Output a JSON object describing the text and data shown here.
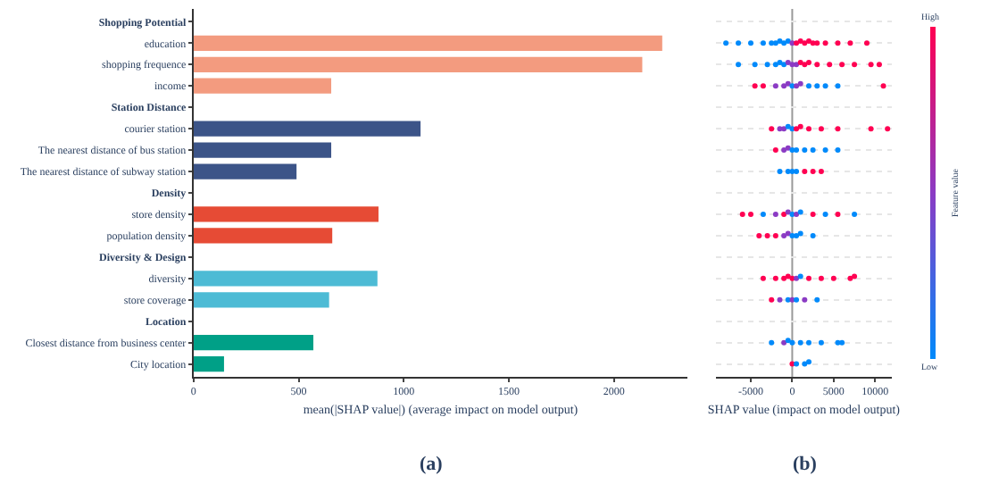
{
  "chart_data": [
    {
      "type": "bar",
      "orientation": "horizontal",
      "categories": [
        "Shopping Potential",
        "education",
        "shopping frequence",
        "income",
        "Station Distance",
        "courier station",
        "The nearest distance of bus station",
        "The nearest distance of subway station",
        "Density",
        "store density",
        "population density",
        "Diversity & Design",
        "diversity",
        "store coverage",
        "Location",
        "Closest distance from business center",
        "City location"
      ],
      "values": [
        null,
        2230,
        2135,
        655,
        null,
        1080,
        655,
        490,
        null,
        880,
        660,
        null,
        875,
        645,
        null,
        570,
        145
      ],
      "colors": [
        null,
        "#f39b7f",
        "#f39b7f",
        "#f39b7f",
        null,
        "#3c5488",
        "#3c5488",
        "#3c5488",
        null,
        "#e64b35",
        "#e64b35",
        null,
        "#4dbbd5",
        "#4dbbd5",
        null,
        "#00a087",
        "#00a087"
      ],
      "xlim": [
        0,
        2350
      ],
      "xticks": [
        0,
        500,
        1000,
        1500,
        2000
      ],
      "xlabel": "mean(|SHAP value|) (average impact on model output)",
      "annotations": [
        "(a)"
      ]
    },
    {
      "type": "scatter",
      "orientation": "horizontal",
      "marker": "circle",
      "grid": "y",
      "tick_labels": "x",
      "categories": [
        "Shopping Potential",
        "education",
        "shopping frequence",
        "income",
        "Station Distance",
        "courier station",
        "The nearest distance of bus station",
        "The nearest distance of subway station",
        "Density",
        "store density",
        "population density",
        "Diversity & Design",
        "diversity",
        "store coverage",
        "Location",
        "Closest distance from business center",
        "City location"
      ],
      "series": [
        {
          "x": [
            "education",
            "education",
            "education",
            "education",
            "education",
            "education",
            "education",
            "education",
            "education",
            "education",
            "education",
            "education",
            "education",
            "education",
            "education",
            "education",
            "education",
            "education",
            "education",
            "education"
          ],
          "values": [
            -8000,
            -6500,
            -5000,
            -3500,
            -2500,
            -2000,
            -1500,
            -1000,
            -500,
            0,
            500,
            1000,
            1500,
            2000,
            2500,
            3000,
            4000,
            5500,
            7000,
            9000
          ],
          "colors": [
            "#008afb",
            "#008afb",
            "#008afb",
            "#008afb",
            "#008afb",
            "#008afb",
            "#008afb",
            "#008afb",
            "#008afb",
            "#8b3bc4",
            "#ff0052",
            "#ff0052",
            "#ff0052",
            "#ff0052",
            "#ff0052",
            "#ff0052",
            "#ff0052",
            "#ff0052",
            "#ff0052",
            "#ff0052"
          ]
        },
        {
          "x": [
            "shopping frequence",
            "shopping frequence",
            "shopping frequence",
            "shopping frequence",
            "shopping frequence",
            "shopping frequence",
            "shopping frequence",
            "shopping frequence",
            "shopping frequence",
            "shopping frequence",
            "shopping frequence",
            "shopping frequence",
            "shopping frequence",
            "shopping frequence",
            "shopping frequence",
            "shopping frequence",
            "shopping frequence",
            "shopping frequence"
          ],
          "values": [
            -6500,
            -4500,
            -3000,
            -2000,
            -1500,
            -1000,
            -500,
            0,
            500,
            1000,
            1500,
            2000,
            3000,
            4500,
            6000,
            7500,
            9500,
            10500
          ],
          "colors": [
            "#008afb",
            "#008afb",
            "#008afb",
            "#008afb",
            "#008afb",
            "#008afb",
            "#8b3bc4",
            "#8b3bc4",
            "#8b3bc4",
            "#ff0052",
            "#ff0052",
            "#ff0052",
            "#ff0052",
            "#ff0052",
            "#ff0052",
            "#ff0052",
            "#ff0052",
            "#ff0052"
          ]
        },
        {
          "x": [
            "income",
            "income",
            "income",
            "income",
            "income",
            "income",
            "income",
            "income",
            "income",
            "income",
            "income",
            "income",
            "income"
          ],
          "values": [
            -4500,
            -3500,
            -2000,
            -1000,
            -500,
            0,
            500,
            1000,
            2000,
            3000,
            4000,
            5500,
            11000
          ],
          "colors": [
            "#ff0052",
            "#ff0052",
            "#8b3bc4",
            "#8b3bc4",
            "#8b3bc4",
            "#008afb",
            "#8b3bc4",
            "#8b3bc4",
            "#008afb",
            "#008afb",
            "#008afb",
            "#008afb",
            "#ff0052"
          ]
        },
        {
          "x": [
            "courier station",
            "courier station",
            "courier station",
            "courier station",
            "courier station",
            "courier station",
            "courier station",
            "courier station",
            "courier station",
            "courier station",
            "courier station",
            "courier station"
          ],
          "values": [
            -2500,
            -1500,
            -1000,
            -500,
            0,
            500,
            1000,
            2000,
            3500,
            5500,
            9500,
            11500
          ],
          "colors": [
            "#ff0052",
            "#8b3bc4",
            "#8b3bc4",
            "#008afb",
            "#008afb",
            "#ff0052",
            "#ff0052",
            "#ff0052",
            "#ff0052",
            "#ff0052",
            "#ff0052",
            "#ff0052"
          ]
        },
        {
          "x": [
            "The nearest distance of bus station",
            "The nearest distance of bus station",
            "The nearest distance of bus station",
            "The nearest distance of bus station",
            "The nearest distance of bus station",
            "The nearest distance of bus station",
            "The nearest distance of bus station",
            "The nearest distance of bus station",
            "The nearest distance of bus station"
          ],
          "values": [
            -2000,
            -1000,
            -500,
            0,
            500,
            1500,
            2500,
            4000,
            5500
          ],
          "colors": [
            "#ff0052",
            "#8b3bc4",
            "#8b3bc4",
            "#008afb",
            "#008afb",
            "#008afb",
            "#008afb",
            "#008afb",
            "#008afb"
          ]
        },
        {
          "x": [
            "The nearest distance of subway station",
            "The nearest distance of subway station",
            "The nearest distance of subway station",
            "The nearest distance of subway station",
            "The nearest distance of subway station",
            "The nearest distance of subway station",
            "The nearest distance of subway station"
          ],
          "values": [
            -1500,
            -500,
            0,
            500,
            1500,
            2500,
            3500
          ],
          "colors": [
            "#008afb",
            "#008afb",
            "#008afb",
            "#008afb",
            "#ff0052",
            "#ff0052",
            "#ff0052"
          ]
        },
        {
          "x": [
            "store density",
            "store density",
            "store density",
            "store density",
            "store density",
            "store density",
            "store density",
            "store density",
            "store density",
            "store density",
            "store density",
            "store density",
            "store density"
          ],
          "values": [
            -6000,
            -5000,
            -3500,
            -2000,
            -1000,
            -500,
            0,
            500,
            1000,
            2500,
            4000,
            5500,
            7500
          ],
          "colors": [
            "#ff0052",
            "#ff0052",
            "#008afb",
            "#8b3bc4",
            "#ff0052",
            "#8b3bc4",
            "#008afb",
            "#8b3bc4",
            "#008afb",
            "#ff0052",
            "#008afb",
            "#ff0052",
            "#008afb"
          ]
        },
        {
          "x": [
            "population density",
            "population density",
            "population density",
            "population density",
            "population density",
            "population density",
            "population density",
            "population density",
            "population density"
          ],
          "values": [
            -4000,
            -3000,
            -2000,
            -1000,
            -500,
            0,
            500,
            1000,
            2500
          ],
          "colors": [
            "#ff0052",
            "#ff0052",
            "#ff0052",
            "#8b3bc4",
            "#8b3bc4",
            "#008afb",
            "#008afb",
            "#008afb",
            "#008afb"
          ]
        },
        {
          "x": [
            "diversity",
            "diversity",
            "diversity",
            "diversity",
            "diversity",
            "diversity",
            "diversity",
            "diversity",
            "diversity",
            "diversity",
            "diversity",
            "diversity"
          ],
          "values": [
            -3500,
            -2000,
            -1000,
            -500,
            0,
            500,
            1000,
            2000,
            3500,
            5000,
            7000,
            7500
          ],
          "colors": [
            "#ff0052",
            "#ff0052",
            "#ff0052",
            "#ff0052",
            "#ff0052",
            "#8b3bc4",
            "#008afb",
            "#ff0052",
            "#ff0052",
            "#ff0052",
            "#ff0052",
            "#ff0052"
          ]
        },
        {
          "x": [
            "store coverage",
            "store coverage",
            "store coverage",
            "store coverage",
            "store coverage",
            "store coverage",
            "store coverage"
          ],
          "values": [
            -2500,
            -1500,
            -500,
            0,
            500,
            1500,
            3000
          ],
          "colors": [
            "#ff0052",
            "#8b3bc4",
            "#008afb",
            "#8b3bc4",
            "#008afb",
            "#8b3bc4",
            "#008afb"
          ]
        },
        {
          "x": [
            "Closest distance from business center",
            "Closest distance from business center",
            "Closest distance from business center",
            "Closest distance from business center",
            "Closest distance from business center",
            "Closest distance from business center",
            "Closest distance from business center",
            "Closest distance from business center",
            "Closest distance from business center"
          ],
          "values": [
            -2500,
            -1000,
            -500,
            0,
            1000,
            2000,
            3500,
            5500,
            6000
          ],
          "colors": [
            "#008afb",
            "#8b3bc4",
            "#008afb",
            "#008afb",
            "#008afb",
            "#008afb",
            "#008afb",
            "#008afb",
            "#008afb"
          ]
        },
        {
          "x": [
            "City location",
            "City location",
            "City location",
            "City location"
          ],
          "values": [
            0,
            500,
            1500,
            2000
          ],
          "colors": [
            "#ff0052",
            "#008afb",
            "#008afb",
            "#008afb"
          ]
        }
      ],
      "xlim": [
        -9200,
        12000
      ],
      "xticks": [
        -5000,
        0,
        5000,
        10000
      ],
      "ref_lines": [
        {
          "axis": "x",
          "value": 0,
          "color": "#999999"
        }
      ],
      "clabel": "Feature value",
      "xlabel": "SHAP value (impact on model output)",
      "annotations": [
        "(b)",
        "High",
        "Low"
      ]
    }
  ]
}
